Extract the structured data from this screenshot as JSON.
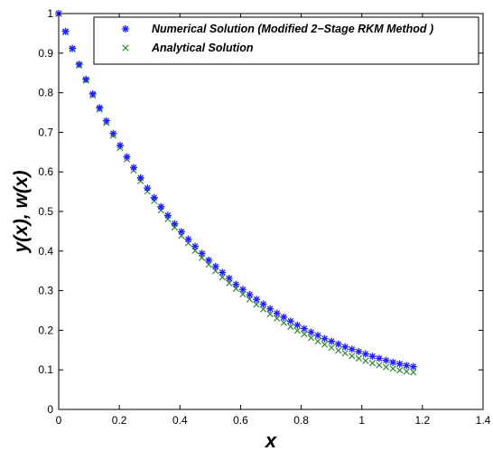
{
  "chart_data": {
    "type": "scatter",
    "xlabel": "x",
    "ylabel": "y(x), w(x)",
    "xlim": [
      0,
      1.4
    ],
    "ylim": [
      0,
      1
    ],
    "xticks": [
      "0",
      "0.2",
      "0.4",
      "0.6",
      "0.8",
      "1",
      "1.2",
      "1.4"
    ],
    "yticks": [
      "0",
      "0.1",
      "0.2",
      "0.3",
      "0.4",
      "0.5",
      "0.6",
      "0.7",
      "0.8",
      "0.9",
      "1"
    ],
    "grid": false,
    "legend_position": "top-right",
    "x": [
      0,
      0.0225,
      0.045,
      0.0675,
      0.09,
      0.1125,
      0.135,
      0.1575,
      0.18,
      0.2025,
      0.225,
      0.2475,
      0.27,
      0.2925,
      0.315,
      0.3375,
      0.36,
      0.3825,
      0.405,
      0.4275,
      0.45,
      0.4725,
      0.495,
      0.5175,
      0.54,
      0.5625,
      0.585,
      0.6075,
      0.63,
      0.6525,
      0.675,
      0.6975,
      0.72,
      0.7425,
      0.765,
      0.7875,
      0.81,
      0.8325,
      0.855,
      0.8775,
      0.9,
      0.9225,
      0.945,
      0.9675,
      0.99,
      1.0125,
      1.035,
      1.0575,
      1.08,
      1.1025,
      1.125,
      1.1475,
      1.17
    ],
    "series": [
      {
        "name": "Numerical Solution (Modified 2−Stage RKM Method )",
        "marker": "asterisk",
        "color": "#1f1fff",
        "values": [
          1.0,
          0.955,
          0.912,
          0.872,
          0.834,
          0.797,
          0.762,
          0.729,
          0.697,
          0.667,
          0.638,
          0.611,
          0.585,
          0.559,
          0.535,
          0.512,
          0.49,
          0.469,
          0.449,
          0.43,
          0.412,
          0.394,
          0.377,
          0.361,
          0.346,
          0.331,
          0.316,
          0.303,
          0.29,
          0.278,
          0.266,
          0.254,
          0.243,
          0.233,
          0.223,
          0.213,
          0.204,
          0.195,
          0.187,
          0.179,
          0.172,
          0.165,
          0.158,
          0.152,
          0.146,
          0.14,
          0.134,
          0.129,
          0.124,
          0.119,
          0.115,
          0.111,
          0.108
        ]
      },
      {
        "name": "Analytical Solution",
        "marker": "x",
        "color": "#2e8b2e",
        "values": [
          1.0,
          0.953,
          0.91,
          0.869,
          0.831,
          0.793,
          0.758,
          0.724,
          0.692,
          0.661,
          0.632,
          0.604,
          0.577,
          0.551,
          0.527,
          0.503,
          0.481,
          0.46,
          0.439,
          0.42,
          0.401,
          0.383,
          0.366,
          0.35,
          0.334,
          0.319,
          0.305,
          0.291,
          0.278,
          0.265,
          0.253,
          0.241,
          0.23,
          0.219,
          0.209,
          0.199,
          0.19,
          0.181,
          0.172,
          0.164,
          0.156,
          0.149,
          0.142,
          0.135,
          0.129,
          0.123,
          0.117,
          0.112,
          0.107,
          0.103,
          0.099,
          0.096,
          0.094
        ]
      }
    ]
  }
}
